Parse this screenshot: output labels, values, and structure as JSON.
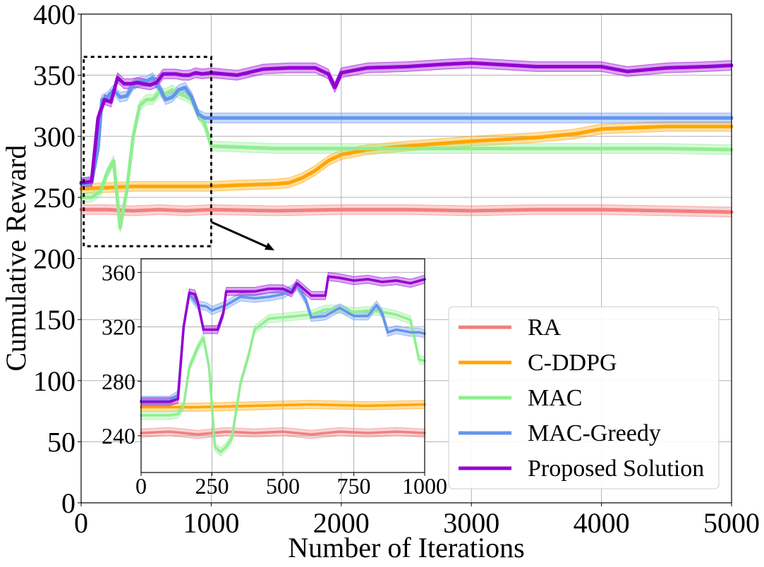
{
  "chart_data": [
    {
      "type": "line",
      "xlabel": "Number of Iterations",
      "ylabel": "Cumulative Reward",
      "xlim": [
        0,
        5000
      ],
      "ylim": [
        0,
        400
      ],
      "xticks": [
        0,
        1000,
        2000,
        3000,
        4000,
        5000
      ],
      "yticks": [
        0,
        50,
        100,
        150,
        200,
        250,
        300,
        350,
        400
      ],
      "grid": true,
      "legend_position": "lower-right",
      "zoom_box": {
        "x": [
          20,
          1000
        ],
        "y": [
          210,
          365
        ]
      },
      "series": [
        {
          "name": "RA",
          "color": "#F08080",
          "x": [
            0,
            200,
            400,
            600,
            800,
            1000,
            1500,
            2000,
            2500,
            3000,
            3500,
            4000,
            4500,
            5000
          ],
          "y": [
            240,
            240,
            239,
            240,
            239,
            240,
            239,
            240,
            240,
            239,
            240,
            240,
            239,
            238
          ]
        },
        {
          "name": "C-DDPG",
          "color": "#FFA500",
          "x": [
            0,
            200,
            400,
            600,
            800,
            1000,
            1200,
            1500,
            1600,
            1700,
            1800,
            1900,
            2000,
            2200,
            2500,
            3000,
            3500,
            3800,
            4000,
            4500,
            5000
          ],
          "y": [
            257,
            258,
            259,
            259,
            259,
            259,
            260,
            261,
            262,
            266,
            272,
            280,
            285,
            289,
            292,
            296,
            299,
            302,
            306,
            308,
            308
          ]
        },
        {
          "name": "MAC",
          "color": "#90EE90",
          "x": [
            0,
            80,
            150,
            200,
            250,
            300,
            350,
            400,
            450,
            500,
            550,
            600,
            650,
            700,
            750,
            800,
            850,
            900,
            950,
            1000,
            1500,
            2000,
            2500,
            3000,
            3500,
            4000,
            4500,
            5000
          ],
          "y": [
            250,
            250,
            255,
            270,
            280,
            225,
            255,
            300,
            325,
            330,
            330,
            336,
            335,
            338,
            335,
            333,
            330,
            318,
            310,
            292,
            290,
            290,
            290,
            290,
            290,
            290,
            290,
            289
          ]
        },
        {
          "name": "MAC-Greedy",
          "color": "#6495ED",
          "x": [
            0,
            80,
            130,
            160,
            200,
            250,
            300,
            350,
            400,
            450,
            500,
            550,
            600,
            650,
            700,
            750,
            800,
            850,
            900,
            950,
            1000,
            2000,
            3000,
            4000,
            5000
          ],
          "y": [
            261,
            262,
            290,
            330,
            332,
            338,
            332,
            333,
            342,
            345,
            345,
            348,
            340,
            330,
            332,
            338,
            340,
            332,
            318,
            315,
            315,
            315,
            315,
            315,
            315
          ]
        },
        {
          "name": "Proposed Solution",
          "color": "#9400D3",
          "x": [
            0,
            80,
            130,
            180,
            230,
            280,
            330,
            380,
            430,
            480,
            530,
            580,
            630,
            680,
            730,
            780,
            830,
            880,
            930,
            1000,
            1200,
            1400,
            1600,
            1800,
            1900,
            1950,
            2000,
            2050,
            2100,
            2200,
            2500,
            2800,
            3000,
            3500,
            4000,
            4200,
            4500,
            4800,
            5000
          ],
          "y": [
            262,
            263,
            315,
            330,
            328,
            348,
            343,
            343,
            344,
            343,
            342,
            344,
            351,
            351,
            351,
            350,
            350,
            352,
            351,
            352,
            350,
            355,
            356,
            356,
            351,
            340,
            352,
            353,
            354,
            356,
            357,
            359,
            360,
            357,
            357,
            353,
            356,
            357,
            358
          ]
        }
      ]
    },
    {
      "type": "line",
      "xlim": [
        0,
        1000
      ],
      "ylim": [
        213,
        370
      ],
      "xticks": [
        0,
        250,
        500,
        750,
        1000
      ],
      "yticks": [
        240,
        280,
        320,
        360
      ],
      "grid": true,
      "series": [
        {
          "name": "RA",
          "color": "#F08080",
          "x": [
            0,
            100,
            200,
            300,
            400,
            500,
            600,
            700,
            800,
            900,
            1000
          ],
          "y": [
            242,
            243,
            241,
            243,
            242,
            243,
            241,
            243,
            242,
            243,
            242
          ]
        },
        {
          "name": "C-DDPG",
          "color": "#FFA500",
          "x": [
            0,
            200,
            400,
            600,
            800,
            1000
          ],
          "y": [
            261,
            261,
            262,
            263,
            262,
            263
          ]
        },
        {
          "name": "MAC",
          "color": "#90EE90",
          "x": [
            0,
            100,
            130,
            150,
            170,
            200,
            220,
            240,
            260,
            280,
            300,
            320,
            350,
            380,
            400,
            450,
            500,
            550,
            600,
            650,
            700,
            750,
            800,
            850,
            900,
            950,
            980,
            1000
          ],
          "y": [
            255,
            255,
            256,
            262,
            290,
            305,
            312,
            290,
            232,
            228,
            232,
            238,
            278,
            300,
            318,
            326,
            327,
            328,
            329,
            333,
            333,
            331,
            332,
            331,
            329,
            325,
            296,
            295
          ]
        },
        {
          "name": "MAC-Greedy",
          "color": "#6495ED",
          "x": [
            0,
            100,
            130,
            150,
            170,
            200,
            230,
            250,
            300,
            350,
            400,
            450,
            500,
            550,
            580,
            600,
            650,
            700,
            750,
            800,
            830,
            850,
            870,
            900,
            950,
            980,
            1000
          ],
          "y": [
            266,
            266,
            270,
            320,
            344,
            336,
            335,
            332,
            336,
            342,
            341,
            342,
            344,
            350,
            340,
            327,
            328,
            334,
            328,
            328,
            336,
            330,
            316,
            318,
            316,
            316,
            315
          ]
        },
        {
          "name": "Proposed Solution",
          "color": "#9400D3",
          "x": [
            0,
            100,
            130,
            150,
            170,
            190,
            200,
            220,
            250,
            270,
            290,
            300,
            350,
            400,
            450,
            500,
            530,
            550,
            600,
            650,
            660,
            700,
            750,
            800,
            850,
            900,
            950,
            1000
          ],
          "y": [
            265,
            265,
            267,
            320,
            345,
            344,
            338,
            318,
            318,
            318,
            330,
            346,
            346,
            346,
            348,
            348,
            345,
            352,
            343,
            343,
            357,
            356,
            354,
            355,
            353,
            354,
            352,
            355
          ]
        }
      ]
    }
  ]
}
